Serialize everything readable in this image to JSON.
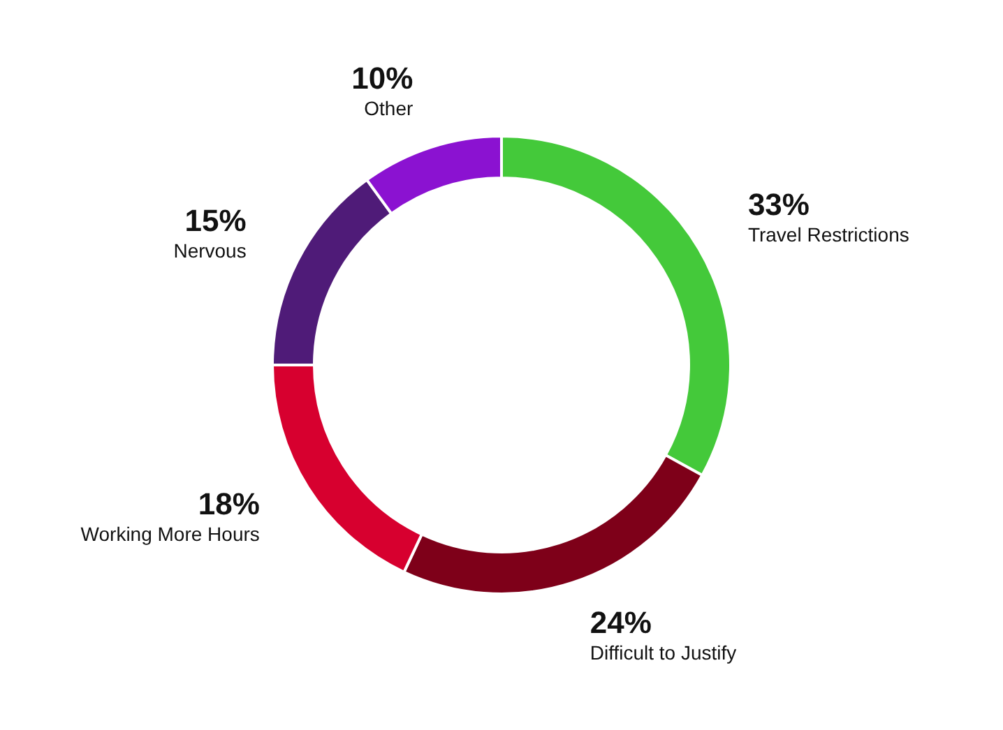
{
  "chart_data": {
    "type": "donut",
    "categories": [
      "Travel Restrictions",
      "Difficult to Justify",
      "Working More Hours",
      "Nervous",
      "Other"
    ],
    "values": [
      33,
      24,
      18,
      15,
      10
    ],
    "value_labels": [
      "33%",
      "24%",
      "18%",
      "15%",
      "10%"
    ],
    "colors": [
      "#44c93a",
      "#7e0019",
      "#d7002f",
      "#4f1b78",
      "#8b12d1"
    ]
  }
}
